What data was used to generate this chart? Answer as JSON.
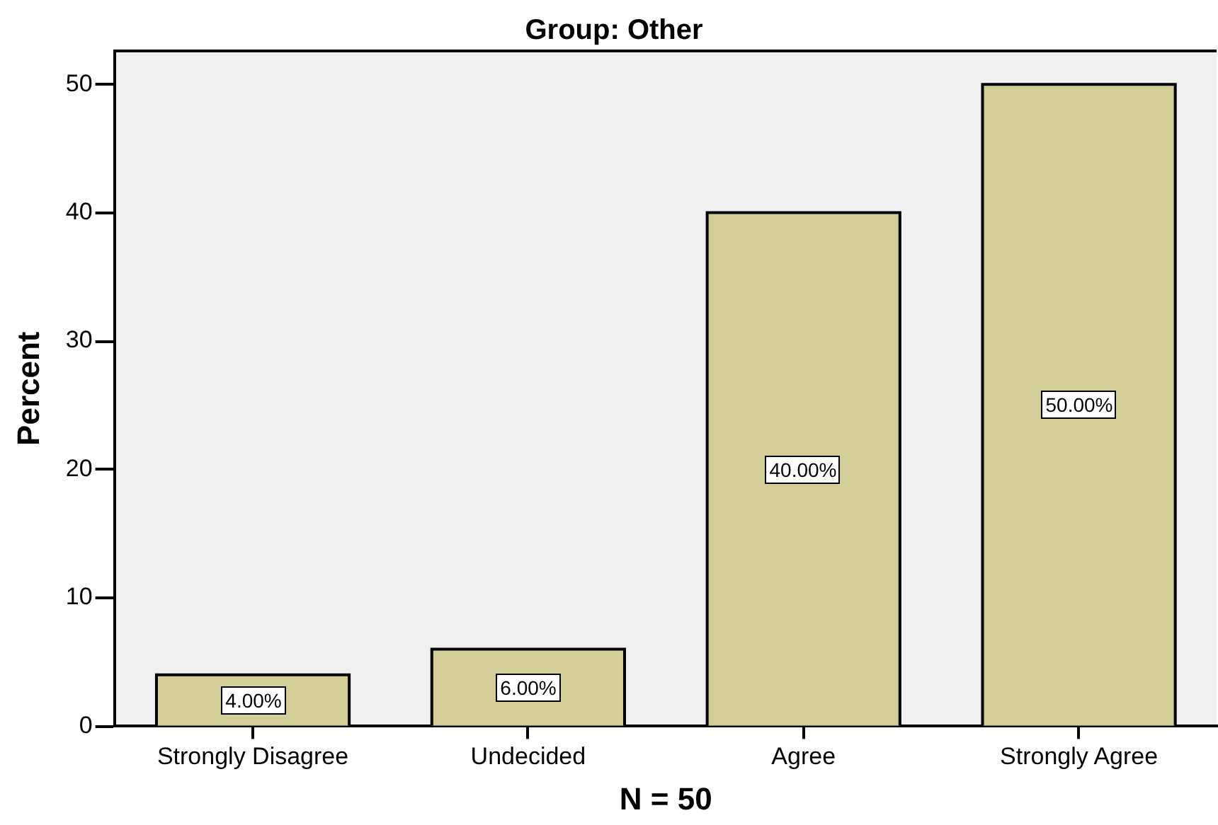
{
  "chart_data": {
    "type": "bar",
    "title": "Group: Other",
    "xlabel": "N = 50",
    "ylabel": "Percent",
    "categories": [
      "Strongly Disagree",
      "Undecided",
      "Agree",
      "Strongly Agree"
    ],
    "values": [
      4,
      6,
      40,
      50
    ],
    "color": "#d3ce97",
    "value_labels": [
      "4.00%",
      "6.00%",
      "40.00%",
      "50.00%"
    ],
    "ylim": [
      0,
      52.6
    ],
    "yticks": [
      0,
      10,
      20,
      30,
      40,
      50
    ],
    "grid": false,
    "legend": false
  }
}
